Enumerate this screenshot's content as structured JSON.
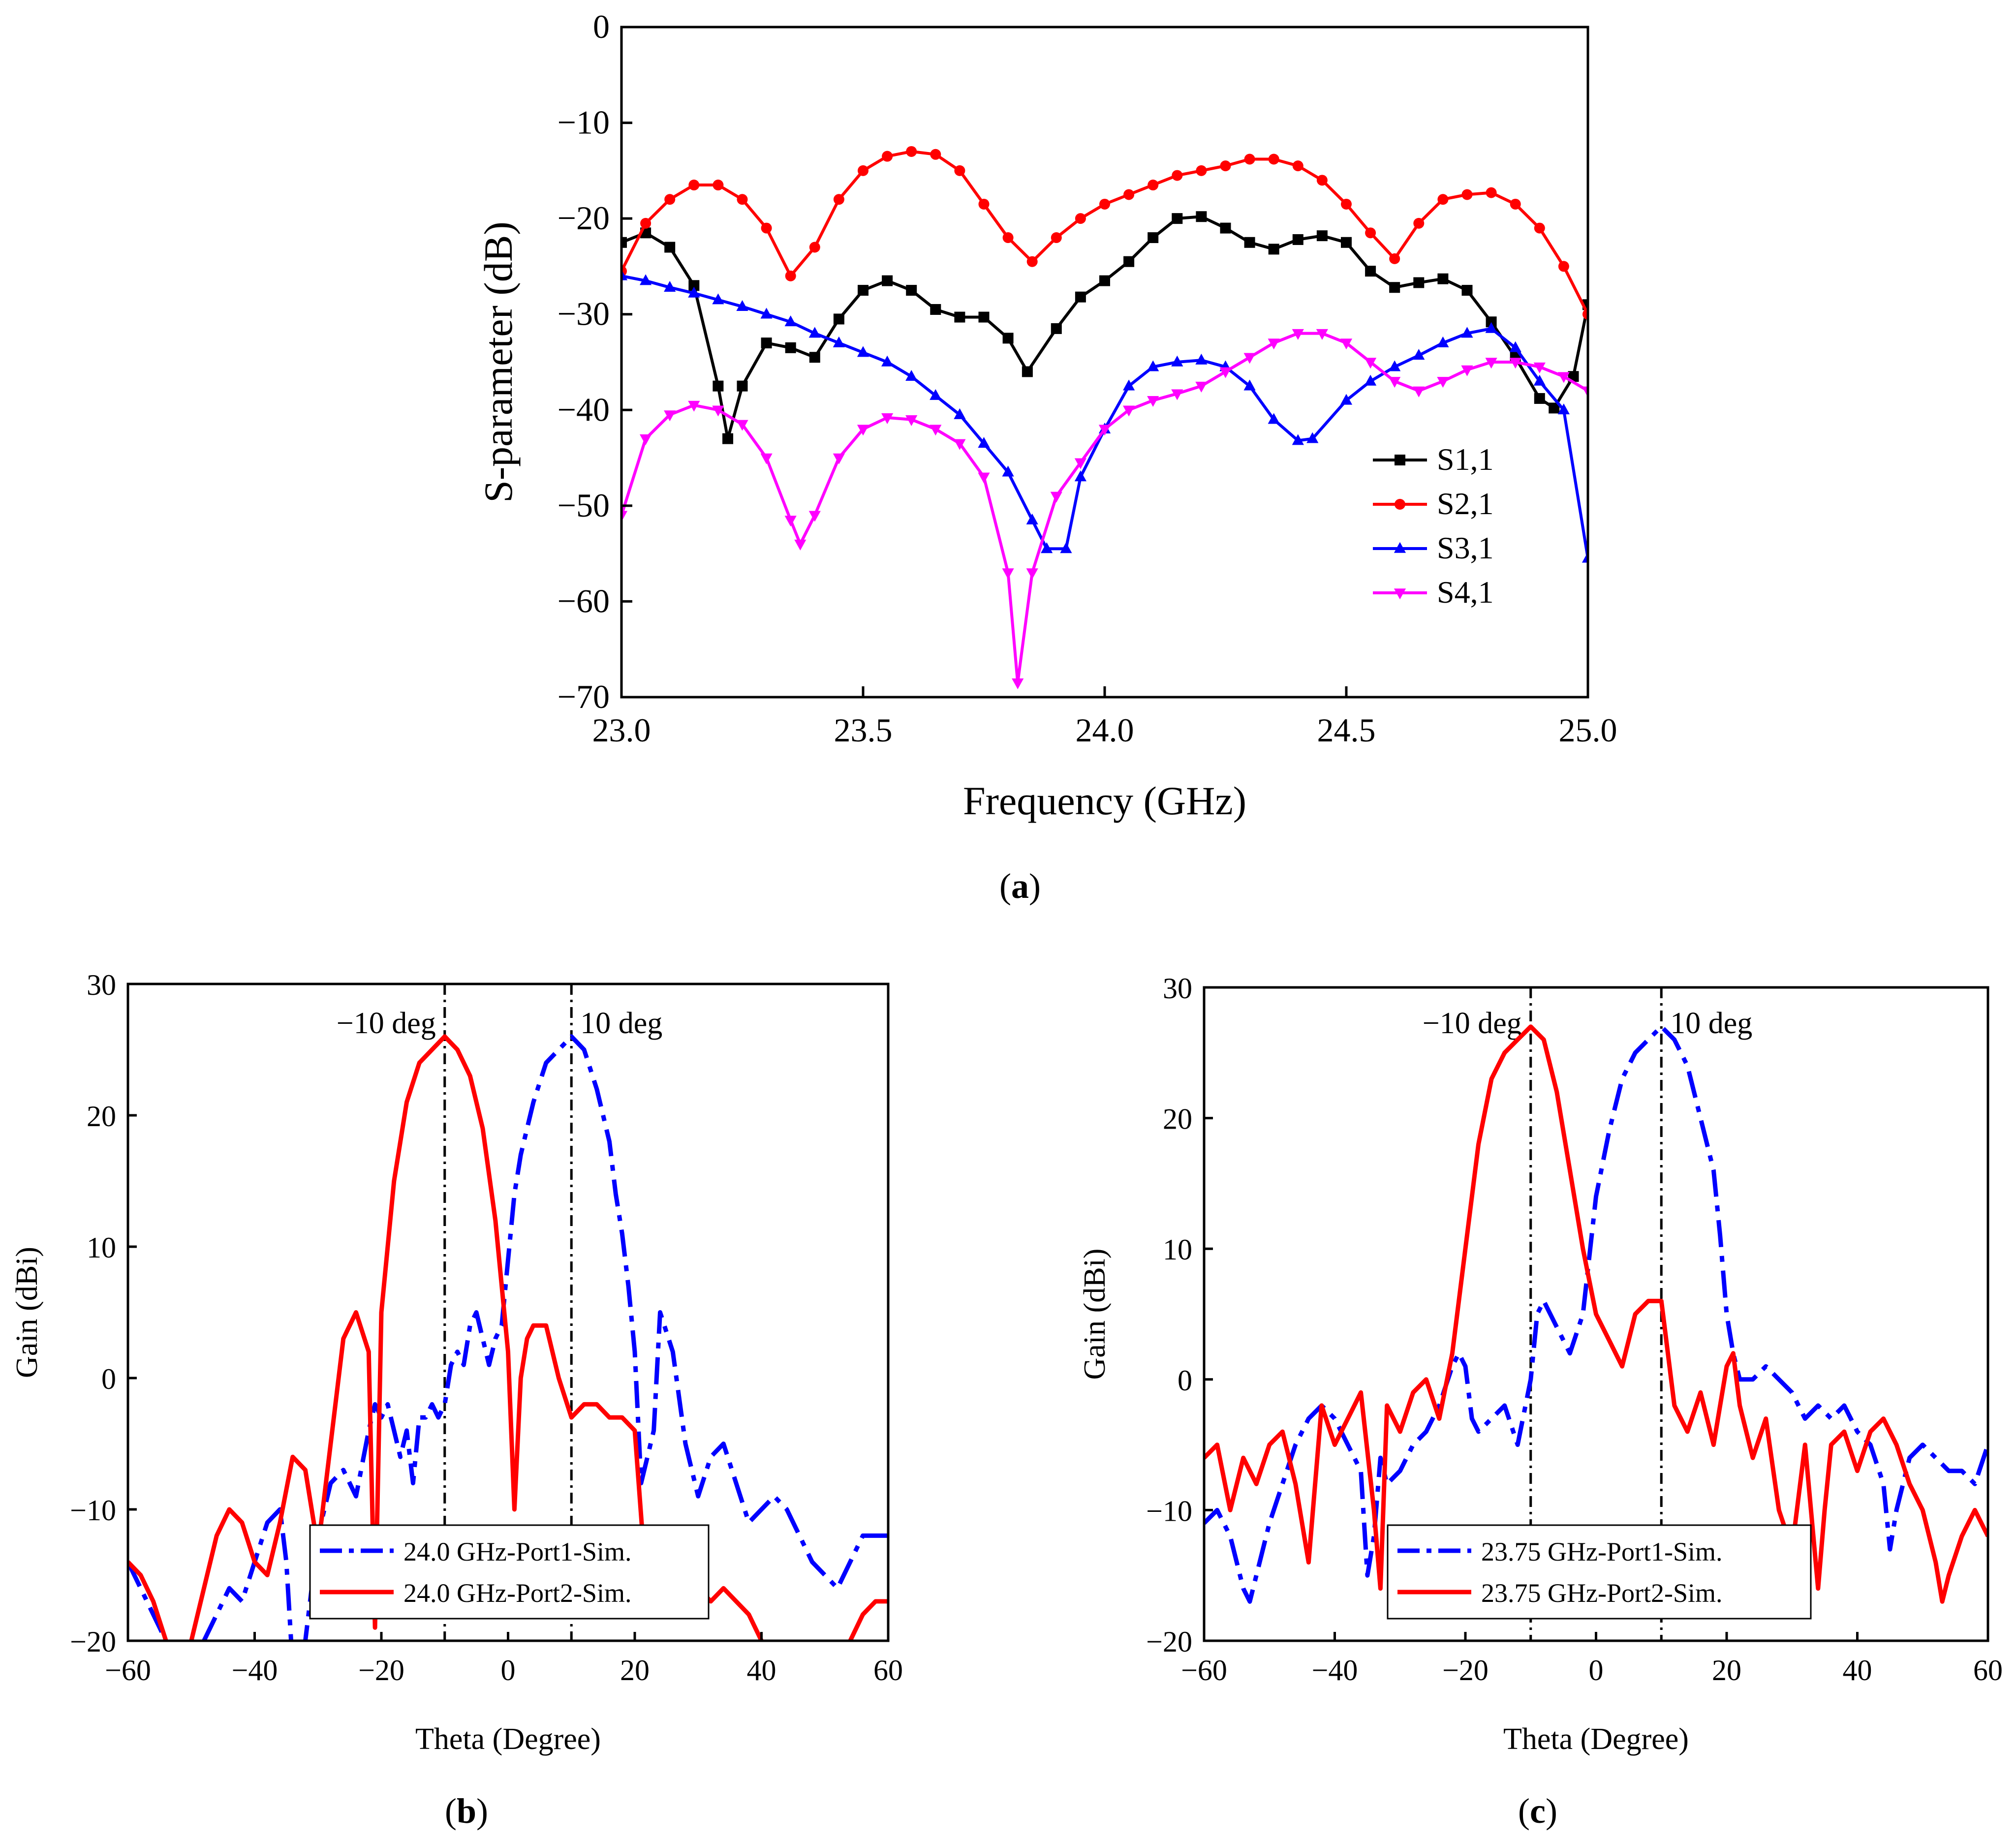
{
  "chart_data": [
    {
      "id": "a",
      "type": "line",
      "caption": "(a)",
      "caption_letter": "a",
      "xlabel": "Frequency (GHz)",
      "ylabel": "S-parameter (dB)",
      "xlim": [
        23.0,
        25.0
      ],
      "ylim": [
        -70,
        0
      ],
      "xticks": [
        23.0,
        23.5,
        24.0,
        24.5,
        25.0
      ],
      "xtick_labels": [
        "23.0",
        "23.5",
        "24.0",
        "24.5",
        "25.0"
      ],
      "yticks": [
        0,
        -10,
        -20,
        -30,
        -40,
        -50,
        -60,
        -70
      ],
      "ytick_labels": [
        "0",
        "−10",
        "−20",
        "−30",
        "−40",
        "−50",
        "−60",
        "−70"
      ],
      "legend_position": "bottom-right",
      "series": [
        {
          "name": "S1,1",
          "color": "#000000",
          "marker": "square",
          "x": [
            23.0,
            23.05,
            23.1,
            23.15,
            23.2,
            23.22,
            23.25,
            23.3,
            23.35,
            23.4,
            23.45,
            23.5,
            23.55,
            23.6,
            23.65,
            23.7,
            23.75,
            23.8,
            23.84,
            23.9,
            23.95,
            24.0,
            24.05,
            24.1,
            24.15,
            24.2,
            24.25,
            24.3,
            24.35,
            24.4,
            24.45,
            24.5,
            24.55,
            24.6,
            24.65,
            24.7,
            24.75,
            24.8,
            24.85,
            24.9,
            24.93,
            24.97,
            25.0
          ],
          "y": [
            -22.5,
            -21.5,
            -23,
            -27,
            -37.5,
            -43,
            -37.5,
            -33,
            -33.5,
            -34.5,
            -30.5,
            -27.5,
            -26.5,
            -27.5,
            -29.5,
            -30.3,
            -30.3,
            -32.5,
            -36,
            -31.5,
            -28.2,
            -26.5,
            -24.5,
            -22,
            -20,
            -19.8,
            -21,
            -22.5,
            -23.2,
            -22.2,
            -21.8,
            -22.5,
            -25.5,
            -27.2,
            -26.7,
            -26.3,
            -27.5,
            -30.8,
            -34.5,
            -38.8,
            -39.8,
            -36.5,
            -29
          ]
        },
        {
          "name": "S2,1",
          "color": "#ff0000",
          "marker": "circle",
          "x": [
            23.0,
            23.05,
            23.1,
            23.15,
            23.2,
            23.25,
            23.3,
            23.35,
            23.4,
            23.45,
            23.5,
            23.55,
            23.6,
            23.65,
            23.7,
            23.75,
            23.8,
            23.85,
            23.9,
            23.95,
            24.0,
            24.05,
            24.1,
            24.15,
            24.2,
            24.25,
            24.3,
            24.35,
            24.4,
            24.45,
            24.5,
            24.55,
            24.6,
            24.65,
            24.7,
            24.75,
            24.8,
            24.85,
            24.9,
            24.95,
            25.0
          ],
          "y": [
            -25.5,
            -20.5,
            -18,
            -16.5,
            -16.5,
            -18,
            -21,
            -26,
            -23,
            -18,
            -15,
            -13.5,
            -13,
            -13.3,
            -15,
            -18.5,
            -22,
            -24.5,
            -22,
            -20,
            -18.5,
            -17.5,
            -16.5,
            -15.5,
            -15,
            -14.5,
            -13.8,
            -13.8,
            -14.5,
            -16,
            -18.5,
            -21.5,
            -24.2,
            -20.5,
            -18,
            -17.5,
            -17.3,
            -18.5,
            -21,
            -25,
            -30
          ]
        },
        {
          "name": "S3,1",
          "color": "#0000ff",
          "marker": "triangle-up",
          "x": [
            23.0,
            23.05,
            23.1,
            23.15,
            23.2,
            23.25,
            23.3,
            23.35,
            23.4,
            23.45,
            23.5,
            23.55,
            23.6,
            23.65,
            23.7,
            23.75,
            23.8,
            23.85,
            23.88,
            23.92,
            23.95,
            24.0,
            24.05,
            24.1,
            24.15,
            24.2,
            24.25,
            24.3,
            24.35,
            24.4,
            24.43,
            24.5,
            24.55,
            24.6,
            24.65,
            24.7,
            24.75,
            24.8,
            24.85,
            24.9,
            24.95,
            25.0
          ],
          "y": [
            -26,
            -26.5,
            -27.2,
            -27.8,
            -28.5,
            -29.2,
            -30,
            -30.8,
            -32,
            -33,
            -34,
            -35,
            -36.5,
            -38.5,
            -40.5,
            -43.5,
            -46.5,
            -51.5,
            -54.5,
            -54.5,
            -47,
            -42,
            -37.5,
            -35.5,
            -35,
            -34.8,
            -35.5,
            -37.5,
            -41,
            -43.2,
            -43,
            -39,
            -37,
            -35.5,
            -34.3,
            -33,
            -32,
            -31.5,
            -33.5,
            -37,
            -40,
            -55.5
          ]
        },
        {
          "name": "S4,1",
          "color": "#ff00ff",
          "marker": "triangle-down",
          "x": [
            23.0,
            23.05,
            23.1,
            23.15,
            23.2,
            23.25,
            23.3,
            23.35,
            23.37,
            23.4,
            23.45,
            23.5,
            23.55,
            23.6,
            23.65,
            23.7,
            23.75,
            23.8,
            23.82,
            23.85,
            23.9,
            23.95,
            24.0,
            24.05,
            24.1,
            24.15,
            24.2,
            24.25,
            24.3,
            24.35,
            24.4,
            24.45,
            24.5,
            24.55,
            24.6,
            24.65,
            24.7,
            24.75,
            24.8,
            24.85,
            24.9,
            24.95,
            25.0
          ],
          "y": [
            -51,
            -43,
            -40.5,
            -39.5,
            -40,
            -41.5,
            -45,
            -51.5,
            -54,
            -51,
            -45,
            -42,
            -40.8,
            -41,
            -42,
            -43.5,
            -47,
            -57,
            -68.5,
            -57,
            -49,
            -45.5,
            -42,
            -40,
            -39,
            -38.3,
            -37.5,
            -36,
            -34.5,
            -33,
            -32,
            -32,
            -33,
            -35,
            -37,
            -38,
            -37,
            -35.8,
            -35,
            -35,
            -35.5,
            -36.5,
            -38
          ]
        }
      ]
    },
    {
      "id": "b",
      "type": "line",
      "caption": "(b)",
      "caption_letter": "b",
      "xlabel": "Theta (Degree)",
      "ylabel": "Gain (dBi)",
      "xlim": [
        -60,
        60
      ],
      "ylim": [
        -20,
        30
      ],
      "xticks": [
        -60,
        -40,
        -20,
        0,
        20,
        40,
        60
      ],
      "xtick_labels": [
        "−60",
        "−40",
        "−20",
        "0",
        "20",
        "40",
        "60"
      ],
      "yticks": [
        30,
        20,
        10,
        0,
        -10,
        -20
      ],
      "ytick_labels": [
        "30",
        "20",
        "10",
        "0",
        "−10",
        "−20"
      ],
      "vlines": [
        -10,
        10
      ],
      "annotations": [
        "−10 deg",
        "10 deg"
      ],
      "legend_position": "lower-center",
      "series": [
        {
          "name": "24.0 GHz-Port1-Sim.",
          "color": "#0000ff",
          "style": "dash-dot",
          "x": [
            -60,
            -58,
            -56,
            -54,
            -52,
            -50,
            -48,
            -46,
            -44,
            -42,
            -40,
            -38,
            -36,
            -35,
            -34,
            -32,
            -30,
            -28,
            -26,
            -24,
            -22,
            -21,
            -20,
            -19,
            -18,
            -17,
            -16,
            -15,
            -14,
            -13,
            -12,
            -11,
            -10,
            -9,
            -8,
            -7,
            -6,
            -5,
            -4,
            -3,
            -2,
            -1,
            0,
            1,
            2,
            3,
            4,
            6,
            8,
            10,
            12,
            14,
            16,
            17,
            18,
            19,
            20,
            21,
            22,
            23,
            24,
            26,
            28,
            30,
            32,
            34,
            36,
            38,
            40,
            42,
            44,
            46,
            48,
            50,
            52,
            54,
            56,
            58,
            60
          ],
          "y": [
            -14,
            -16,
            -18,
            -20,
            -22,
            -21,
            -20,
            -18,
            -16,
            -17,
            -14,
            -11,
            -10,
            -14,
            -22,
            -20,
            -12,
            -8,
            -7,
            -9,
            -4,
            -2,
            -3,
            -2,
            -4,
            -6,
            -4,
            -8,
            -3,
            -3,
            -2,
            -3,
            -2,
            1,
            2,
            1,
            4,
            5,
            3,
            1,
            3,
            4,
            9,
            14,
            17,
            19,
            21,
            24,
            25,
            26,
            25,
            22,
            18,
            14,
            11,
            7,
            2,
            -8,
            -6,
            -4,
            5,
            2,
            -5,
            -9,
            -6,
            -5,
            -8,
            -11,
            -10,
            -9,
            -10,
            -12,
            -14,
            -15,
            -16,
            -14,
            -12,
            -12,
            -12
          ]
        },
        {
          "name": "24.0 GHz-Port2-Sim.",
          "color": "#ff0000",
          "style": "solid",
          "x": [
            -60,
            -58,
            -56,
            -54,
            -52,
            -50,
            -48,
            -46,
            -44,
            -42,
            -40,
            -38,
            -36,
            -34,
            -32,
            -30,
            -28,
            -26,
            -24,
            -22,
            -21,
            -20,
            -18,
            -16,
            -14,
            -12,
            -10,
            -8,
            -6,
            -4,
            -2,
            0,
            1,
            2,
            3,
            4,
            6,
            8,
            10,
            12,
            14,
            16,
            18,
            20,
            22,
            24,
            26,
            28,
            30,
            32,
            34,
            36,
            38,
            40,
            42,
            44,
            46,
            48,
            50,
            52,
            54,
            56,
            58,
            60
          ],
          "y": [
            -14,
            -15,
            -17,
            -20,
            -22,
            -20,
            -16,
            -12,
            -10,
            -11,
            -14,
            -15,
            -11,
            -6,
            -7,
            -13,
            -5,
            3,
            5,
            2,
            -19,
            5,
            15,
            21,
            24,
            25,
            26,
            25,
            23,
            19,
            12,
            2,
            -10,
            0,
            3,
            4,
            4,
            0,
            -3,
            -2,
            -2,
            -3,
            -3,
            -4,
            -17,
            -14,
            -17,
            -16,
            -16,
            -17,
            -16,
            -17,
            -18,
            -20,
            -21,
            -23,
            -21,
            -22,
            -21,
            -21,
            -20,
            -18,
            -17,
            -17
          ]
        }
      ]
    },
    {
      "id": "c",
      "type": "line",
      "caption": "(c)",
      "caption_letter": "c",
      "xlabel": "Theta (Degree)",
      "ylabel": "Gain (dBi)",
      "xlim": [
        -60,
        60
      ],
      "ylim": [
        -20,
        30
      ],
      "xticks": [
        -60,
        -40,
        -20,
        0,
        20,
        40,
        60
      ],
      "xtick_labels": [
        "−60",
        "−40",
        "−20",
        "0",
        "20",
        "40",
        "60"
      ],
      "yticks": [
        30,
        20,
        10,
        0,
        -10,
        -20
      ],
      "ytick_labels": [
        "30",
        "20",
        "10",
        "0",
        "−10",
        "−20"
      ],
      "vlines": [
        -10,
        10
      ],
      "annotations": [
        "−10 deg",
        "10 deg"
      ],
      "legend_position": "lower-center",
      "series": [
        {
          "name": "23.75 GHz-Port1-Sim.",
          "color": "#0000ff",
          "style": "dash-dot",
          "x": [
            -60,
            -58,
            -56,
            -54,
            -53,
            -52,
            -50,
            -48,
            -46,
            -44,
            -42,
            -40,
            -38,
            -36,
            -35,
            -34,
            -33,
            -32,
            -30,
            -28,
            -26,
            -24,
            -22,
            -21,
            -20,
            -19,
            -18,
            -16,
            -14,
            -12,
            -10,
            -9,
            -8,
            -6,
            -4,
            -2,
            0,
            2,
            4,
            6,
            8,
            10,
            12,
            14,
            16,
            18,
            19,
            20,
            21,
            22,
            24,
            26,
            28,
            30,
            32,
            34,
            36,
            38,
            40,
            42,
            44,
            45,
            46,
            48,
            50,
            52,
            54,
            56,
            58,
            60
          ],
          "y": [
            -11,
            -10,
            -12,
            -16,
            -17,
            -15,
            -11,
            -8,
            -5,
            -3,
            -2,
            -3,
            -5,
            -7,
            -15,
            -12,
            -6,
            -8,
            -7,
            -5,
            -4,
            -2,
            1,
            2,
            1,
            -3,
            -4,
            -3,
            -2,
            -5,
            0,
            5,
            6,
            4,
            2,
            5,
            14,
            19,
            23,
            25,
            26,
            27,
            26,
            24,
            20,
            16,
            11,
            5,
            2,
            0,
            0,
            1,
            0,
            -1,
            -3,
            -2,
            -3,
            -2,
            -4,
            -5,
            -8,
            -13,
            -10,
            -6,
            -5,
            -6,
            -7,
            -7,
            -8,
            -5
          ]
        },
        {
          "name": "23.75 GHz-Port2-Sim.",
          "color": "#ff0000",
          "style": "solid",
          "x": [
            -60,
            -58,
            -56,
            -54,
            -52,
            -50,
            -48,
            -46,
            -44,
            -42,
            -40,
            -38,
            -36,
            -34,
            -33,
            -32,
            -30,
            -28,
            -26,
            -24,
            -22,
            -20,
            -18,
            -16,
            -14,
            -12,
            -10,
            -8,
            -6,
            -4,
            -2,
            0,
            2,
            4,
            6,
            8,
            10,
            12,
            14,
            16,
            18,
            20,
            21,
            22,
            24,
            26,
            28,
            30,
            32,
            34,
            35,
            36,
            38,
            40,
            42,
            44,
            46,
            48,
            50,
            52,
            53,
            54,
            56,
            58,
            60
          ],
          "y": [
            -6,
            -5,
            -10,
            -6,
            -8,
            -5,
            -4,
            -8,
            -14,
            -2,
            -5,
            -3,
            -1,
            -10,
            -16,
            -2,
            -4,
            -1,
            0,
            -3,
            2,
            10,
            18,
            23,
            25,
            26,
            27,
            26,
            22,
            16,
            10,
            5,
            3,
            1,
            5,
            6,
            6,
            -2,
            -4,
            -1,
            -5,
            1,
            2,
            -2,
            -6,
            -3,
            -10,
            -13,
            -5,
            -16,
            -10,
            -5,
            -4,
            -7,
            -4,
            -3,
            -5,
            -8,
            -10,
            -14,
            -17,
            -15,
            -12,
            -10,
            -12
          ]
        }
      ]
    }
  ]
}
